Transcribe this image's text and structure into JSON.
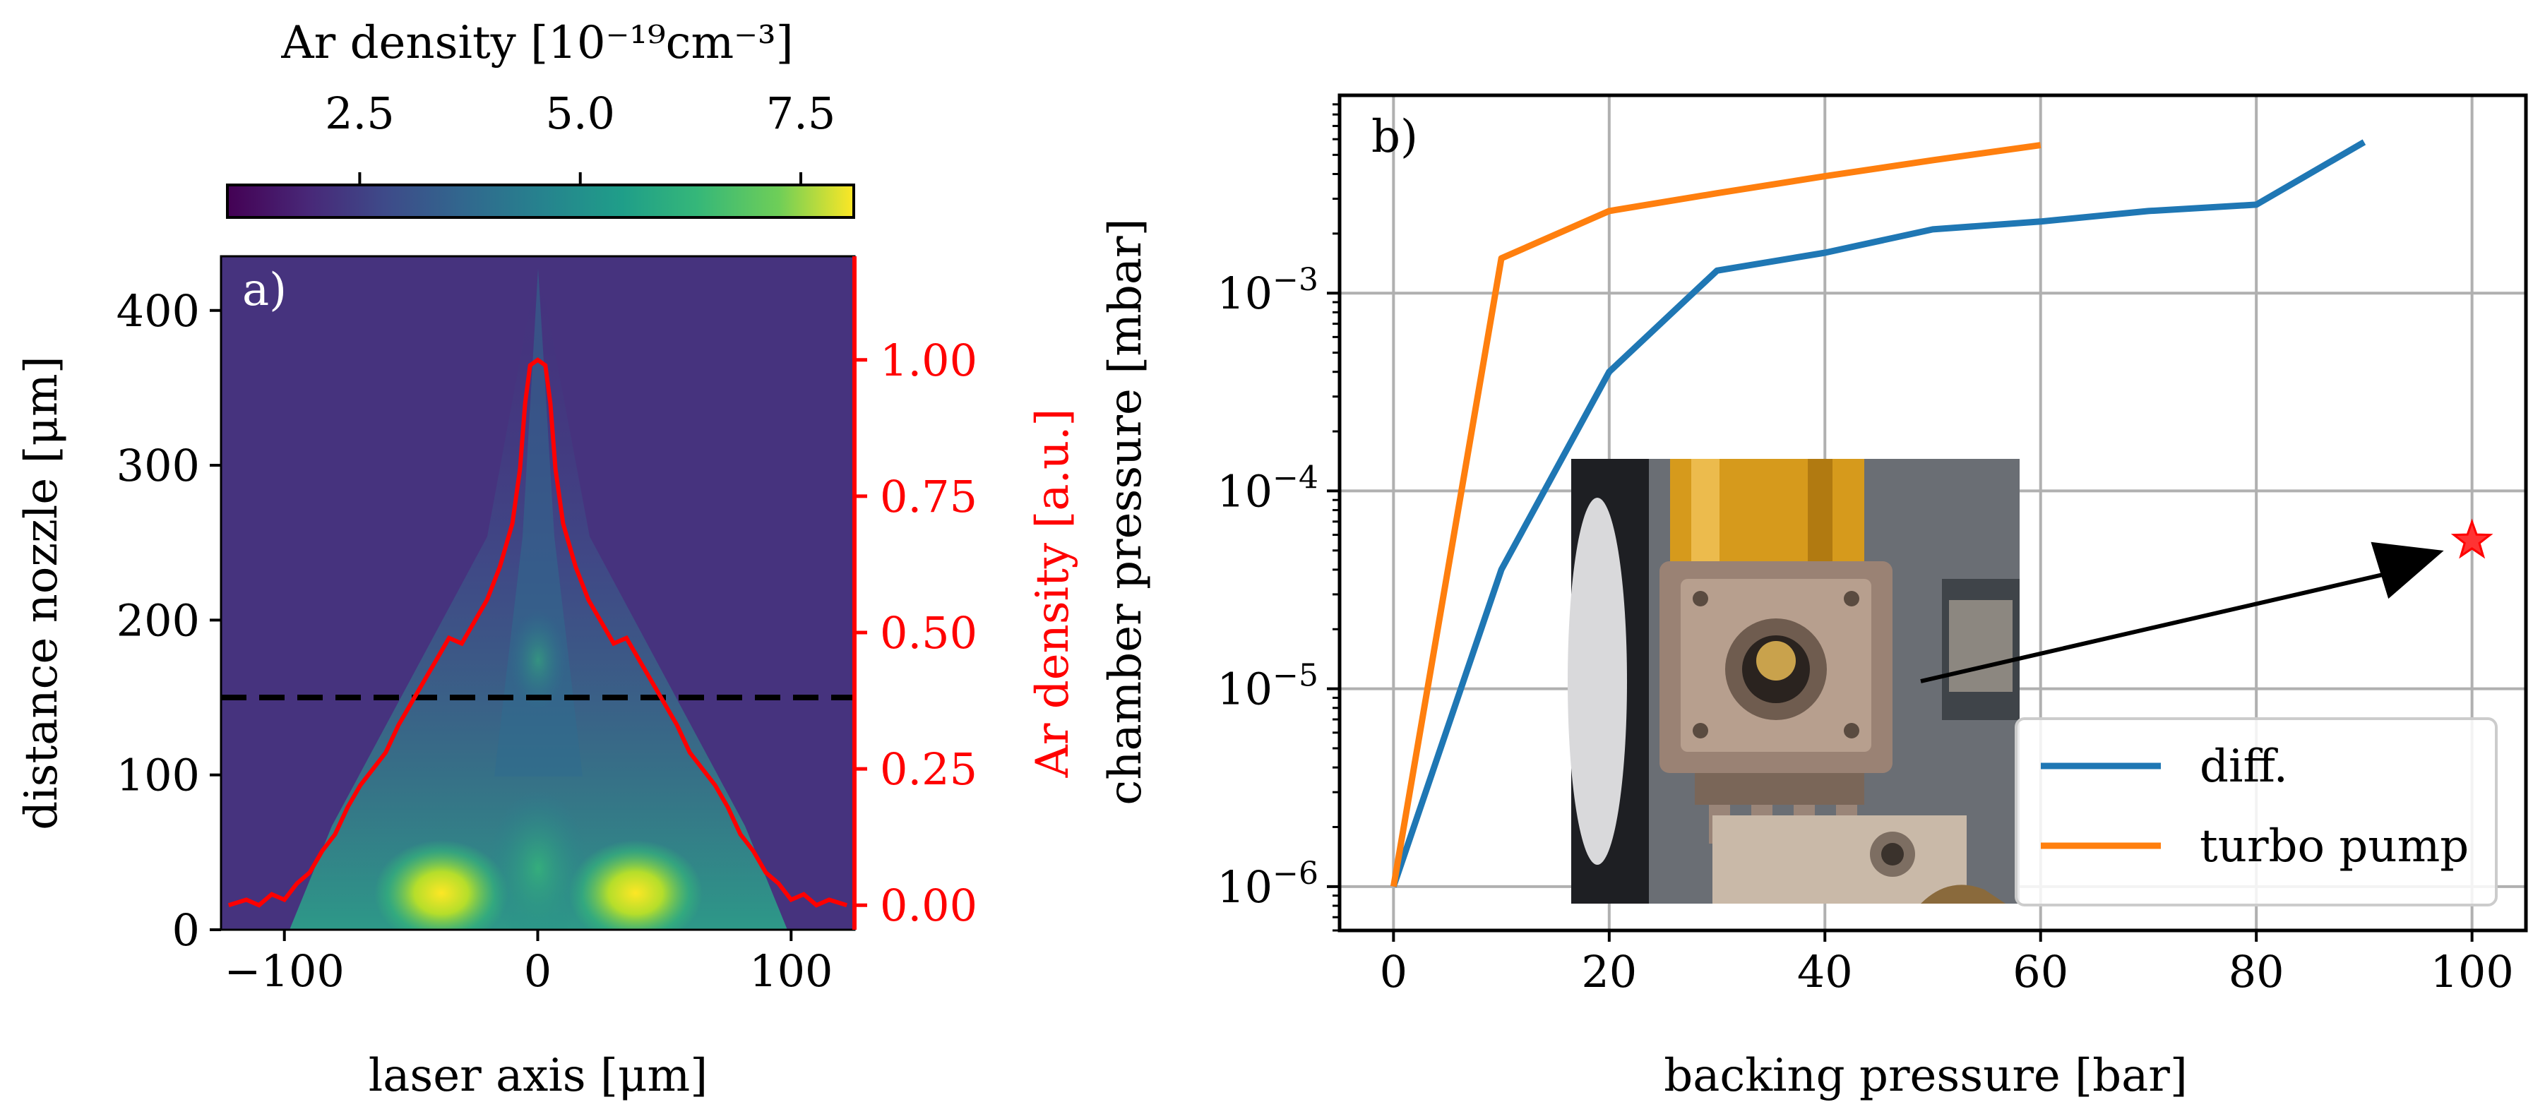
{
  "colors": {
    "red": "#ff0000",
    "diff": "#1f77b4",
    "turbo": "#ff7f0e",
    "grid": "#b0b0b0",
    "viridis_low": "#440154",
    "viridis_mid": "#21918c",
    "viridis_high": "#fde725"
  },
  "chart_data": [
    {
      "panel": "a)",
      "type": "heatmap",
      "colormap": "viridis",
      "colorbar": {
        "label": "Ar density [10⁻¹⁹cm⁻³]",
        "ticks": [
          "2.5",
          "5.0",
          "7.5"
        ],
        "tick_values": [
          2.5,
          5.0,
          7.5
        ],
        "range": [
          1.0,
          8.1
        ]
      },
      "xlabel": "laser axis [μm]",
      "ylabel": "distance nozzle [μm]",
      "ylabel_right": "Ar density [a.u.]",
      "xlim": [
        -125,
        125
      ],
      "ylim": [
        0,
        435
      ],
      "xticks": [
        -100,
        0,
        100
      ],
      "xtick_labels": [
        "−100",
        "0",
        "100"
      ],
      "yticks": [
        0,
        100,
        200,
        300,
        400
      ],
      "ytick_labels": [
        "0",
        "100",
        "200",
        "300",
        "400"
      ],
      "y2lim": [
        -0.045,
        1.19
      ],
      "y2ticks": [
        0.0,
        0.25,
        0.5,
        0.75,
        1.0
      ],
      "y2tick_labels": [
        "0.00",
        "0.25",
        "0.50",
        "0.75",
        "1.00"
      ],
      "hline": {
        "y": 150,
        "style": "dashed"
      },
      "series": [
        {
          "axis": "right",
          "x": [
            -122,
            -115,
            -110,
            -105,
            -100,
            -95,
            -90,
            -85,
            -80,
            -75,
            -70,
            -65,
            -60,
            -55,
            -50,
            -45,
            -40,
            -35,
            -30,
            -25,
            -20,
            -15,
            -10,
            -7,
            -5,
            -3,
            0,
            3,
            5,
            7,
            10,
            15,
            20,
            25,
            30,
            35,
            40,
            45,
            50,
            55,
            60,
            65,
            70,
            75,
            80,
            85,
            90,
            95,
            100,
            105,
            110,
            115,
            122
          ],
          "values": [
            0.0,
            0.01,
            0.0,
            0.02,
            0.01,
            0.04,
            0.06,
            0.1,
            0.13,
            0.18,
            0.22,
            0.25,
            0.28,
            0.33,
            0.37,
            0.41,
            0.45,
            0.49,
            0.48,
            0.52,
            0.56,
            0.62,
            0.7,
            0.8,
            0.92,
            0.99,
            1.0,
            0.99,
            0.92,
            0.8,
            0.7,
            0.62,
            0.56,
            0.52,
            0.48,
            0.49,
            0.45,
            0.41,
            0.37,
            0.33,
            0.28,
            0.25,
            0.22,
            0.18,
            0.13,
            0.1,
            0.06,
            0.04,
            0.01,
            0.02,
            0.0,
            0.01,
            0.0
          ]
        }
      ]
    },
    {
      "panel": "b)",
      "type": "line",
      "xlabel": "backing pressure [bar]",
      "ylabel": "chamber pressure [mbar]",
      "xlim": [
        -5,
        105
      ],
      "ylim": [
        6e-07,
        0.01
      ],
      "yscale": "log",
      "grid": true,
      "xticks": [
        0,
        20,
        40,
        60,
        80,
        100
      ],
      "xtick_labels": [
        "0",
        "20",
        "40",
        "60",
        "80",
        "100"
      ],
      "yticks": [
        1e-06,
        1e-05,
        0.0001,
        0.001
      ],
      "ytick_labels": [
        {
          "base": "10",
          "exp": "−6"
        },
        {
          "base": "10",
          "exp": "−5"
        },
        {
          "base": "10",
          "exp": "−4"
        },
        {
          "base": "10",
          "exp": "−3"
        }
      ],
      "legend_position": "lower-right",
      "series": [
        {
          "name": "diff.",
          "x": [
            0,
            10,
            20,
            30,
            40,
            50,
            60,
            70,
            80,
            90
          ],
          "values": [
            1e-06,
            4e-05,
            0.0004,
            0.0013,
            0.0016,
            0.0021,
            0.0023,
            0.0026,
            0.0028,
            0.0058
          ]
        },
        {
          "name": "turbo pump",
          "x": [
            0,
            10,
            20,
            30,
            40,
            50,
            60
          ],
          "values": [
            1e-06,
            0.0015,
            0.0026,
            0.0032,
            0.0039,
            0.0047,
            0.0056
          ]
        }
      ],
      "marker": {
        "x": 100,
        "y": 5.6e-05,
        "shape": "star"
      },
      "inset": "photo of the gas nozzle assembly"
    }
  ]
}
